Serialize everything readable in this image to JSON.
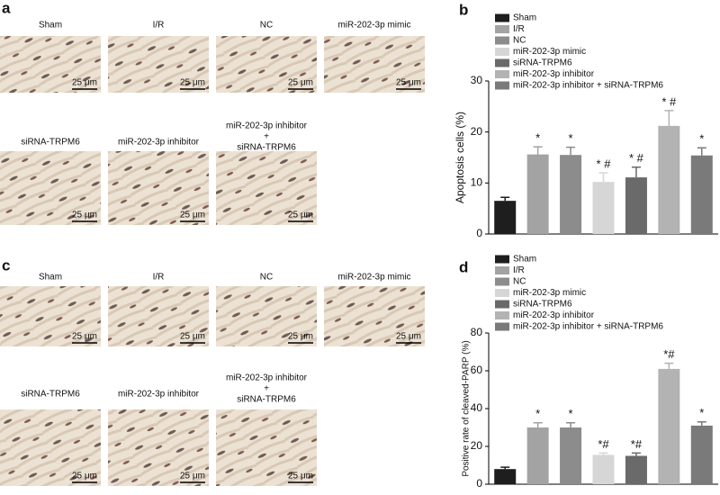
{
  "figure": {
    "panel_a": "a",
    "panel_c": "c",
    "scale_bar": "25 μm",
    "panels": [
      {
        "labels": [
          "Sham",
          "I/R",
          "NC",
          "miR-202-3p mimic"
        ],
        "row2": [
          "siRNA-TRPM6",
          "miR-202-3p inhibitor"
        ],
        "combo": [
          "miR-202-3p inhibitor",
          "+",
          "siRNA-TRPM6"
        ]
      },
      {
        "labels": [
          "Sham",
          "I/R",
          "NC",
          "miR-202-3p mimic"
        ],
        "row2": [
          "siRNA-TRPM6",
          "miR-202-3p inhibitor"
        ],
        "combo": [
          "miR-202-3p inhibitor",
          "+",
          "siRNA-TRPM6"
        ]
      }
    ]
  },
  "chart_data": [
    {
      "type": "bar",
      "panel": "b",
      "y_label": "Apoptosis cells (%)",
      "categories": [
        "Sham",
        "I/R",
        "NC",
        "miR-202-3p mimic",
        "siRNA-TRPM6",
        "miR-202-3p inhibitor",
        "miR-202-3p inhibitor + siRNA-TRPM6"
      ],
      "colors": [
        "#1e1e1e",
        "#a3a3a3",
        "#8c8c8c",
        "#d6d6d6",
        "#6a6a6a",
        "#b3b3b3",
        "#7a7a7a"
      ],
      "values": [
        6.5,
        15.6,
        15.5,
        10.2,
        11.1,
        21.2,
        15.4
      ],
      "errors": [
        0.7,
        1.5,
        1.5,
        1.8,
        2.0,
        3.0,
        1.5
      ],
      "annotations": [
        null,
        "*",
        "*",
        "* #",
        "* #",
        "* #",
        "*"
      ],
      "ylim": [
        0,
        30
      ],
      "yticks": [
        0,
        10,
        20,
        30
      ]
    },
    {
      "type": "bar",
      "panel": "d",
      "y_label": "Positive rate of cleaved-PARP (%)",
      "categories": [
        "Sham",
        "I/R",
        "NC",
        "miR-202-3p mimic",
        "siRNA-TRPM6",
        "miR-202-3p inhibitor",
        "miR-202-3p inhibitor + siRNA-TRPM6"
      ],
      "colors": [
        "#1e1e1e",
        "#a3a3a3",
        "#8c8c8c",
        "#d6d6d6",
        "#6a6a6a",
        "#b3b3b3",
        "#7a7a7a"
      ],
      "values": [
        8,
        30,
        30,
        15.5,
        15,
        61,
        31
      ],
      "errors": [
        1,
        2.5,
        2.5,
        1,
        1.5,
        3,
        2
      ],
      "annotations": [
        null,
        "*",
        "*",
        "*#",
        "*#",
        "*#",
        "*"
      ],
      "ylim": [
        0,
        80
      ],
      "yticks": [
        0,
        20,
        40,
        60,
        80
      ]
    }
  ]
}
